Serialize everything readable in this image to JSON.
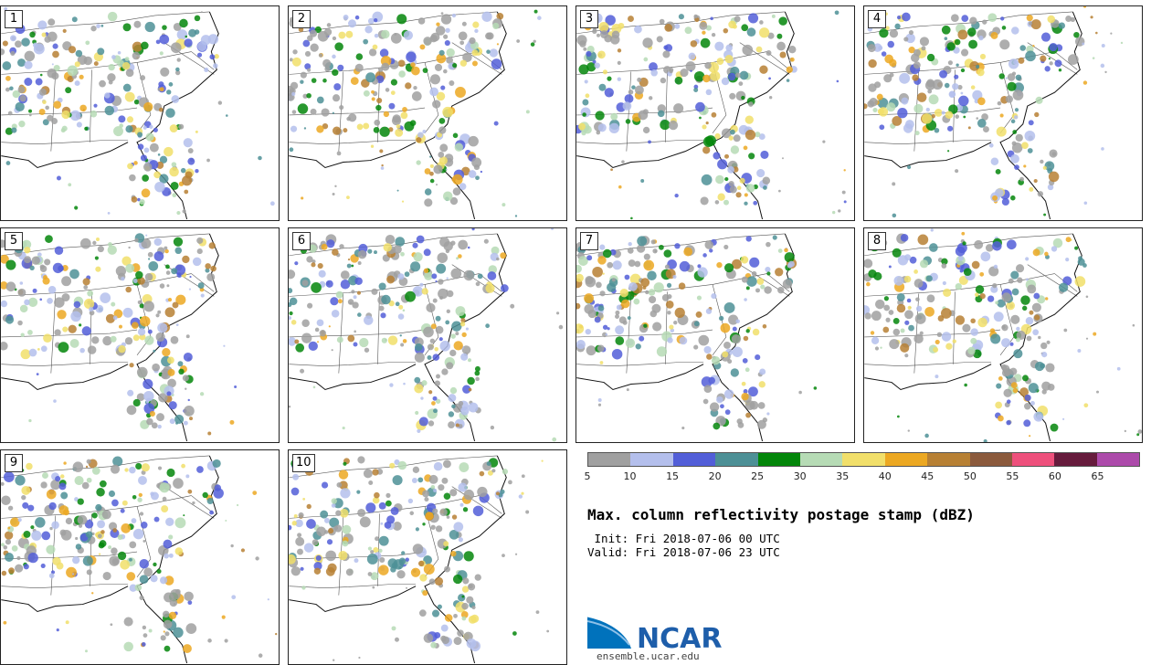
{
  "panels": [
    {
      "label": "1"
    },
    {
      "label": "2"
    },
    {
      "label": "3"
    },
    {
      "label": "4"
    },
    {
      "label": "5"
    },
    {
      "label": "6"
    },
    {
      "label": "7"
    },
    {
      "label": "8"
    },
    {
      "label": "9"
    },
    {
      "label": "10"
    }
  ],
  "colorbar": {
    "colors": [
      "#a0a0a0",
      "#b4bfec",
      "#525ed8",
      "#4d9096",
      "#03860a",
      "#b6dbb5",
      "#f1df6a",
      "#eca822",
      "#b78034",
      "#8b5a3c",
      "#ee507c",
      "#661b3c",
      "#ac4aaa"
    ],
    "ticks": [
      "5",
      "10",
      "15",
      "20",
      "25",
      "30",
      "35",
      "40",
      "45",
      "50",
      "55",
      "60",
      "65"
    ]
  },
  "title": "Max. column reflectivity postage stamp (dBZ)",
  "init": " Init: Fri 2018-07-06 00 UTC",
  "valid": "Valid: Fri 2018-07-06 23 UTC",
  "logo": {
    "name": "NCAR",
    "url": "ensemble.ucar.edu"
  }
}
